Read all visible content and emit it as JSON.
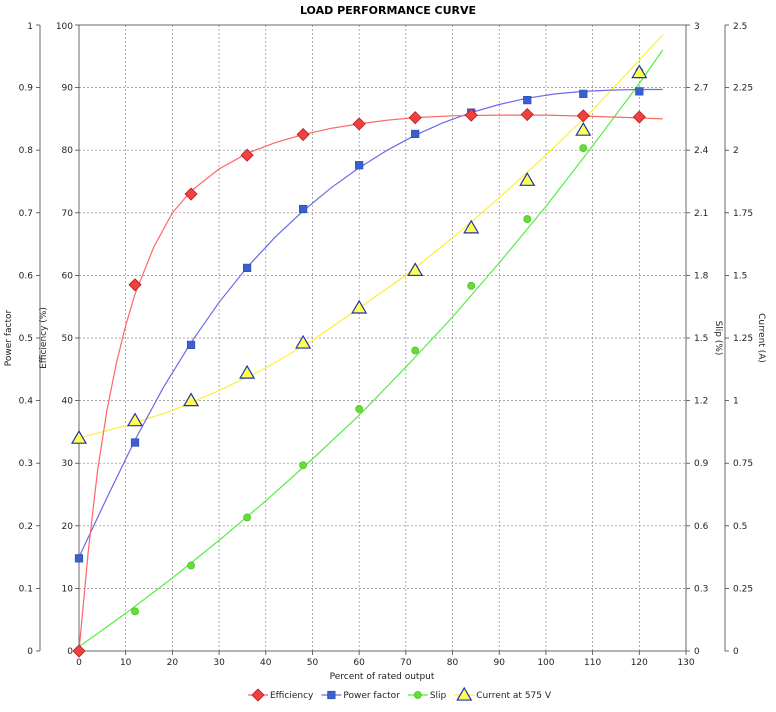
{
  "chart_data": {
    "type": "line",
    "title": "LOAD PERFORMANCE CURVE",
    "xlabel": "Percent of rated output",
    "xlim": [
      0,
      130
    ],
    "xticks": [
      0,
      10,
      20,
      30,
      40,
      50,
      60,
      70,
      80,
      90,
      100,
      110,
      120,
      130
    ],
    "grid": true,
    "legend_position": "bottom",
    "axes": [
      {
        "id": "pf",
        "label": "Power factor",
        "side": "left",
        "lim": [
          0,
          1
        ],
        "ticks": [
          "0",
          "0.1",
          "0.2",
          "0.3",
          "0.4",
          "0.5",
          "0.6",
          "0.7",
          "0.8",
          "0.9",
          "1"
        ]
      },
      {
        "id": "eff",
        "label": "Efficiency (%)",
        "side": "left",
        "lim": [
          0,
          100
        ],
        "ticks": [
          "0",
          "10",
          "20",
          "30",
          "40",
          "50",
          "60",
          "70",
          "80",
          "90",
          "100"
        ]
      },
      {
        "id": "slip",
        "label": "Slip (%)",
        "side": "right",
        "lim": [
          0,
          3
        ],
        "ticks": [
          "0",
          "0.3",
          "0.6",
          "0.9",
          "1.2",
          "1.5",
          "1.8",
          "2.1",
          "2.4",
          "2.7",
          "3"
        ]
      },
      {
        "id": "cur",
        "label": "Current (A)",
        "side": "right",
        "lim": [
          0,
          2.5
        ],
        "ticks": [
          "0",
          "0.25",
          "0.5",
          "0.75",
          "1",
          "1.25",
          "1.5",
          "1.75",
          "2",
          "2.25",
          "2.5"
        ]
      }
    ],
    "series": [
      {
        "name": "Efficiency",
        "axis": "eff",
        "color": "#f04040",
        "stroke": "#ff6666",
        "marker": "diamond",
        "points": [
          [
            0,
            0
          ],
          [
            12,
            58.5
          ],
          [
            24,
            73
          ],
          [
            36,
            79.2
          ],
          [
            48,
            82.5
          ],
          [
            60,
            84.2
          ],
          [
            72,
            85.2
          ],
          [
            84,
            85.6
          ],
          [
            96,
            85.7
          ],
          [
            108,
            85.5
          ],
          [
            120,
            85.3
          ]
        ],
        "curve": [
          [
            0,
            0
          ],
          [
            2,
            16
          ],
          [
            4,
            29
          ],
          [
            6,
            38.5
          ],
          [
            8,
            46
          ],
          [
            10,
            52
          ],
          [
            12,
            57
          ],
          [
            16,
            64.5
          ],
          [
            20,
            70
          ],
          [
            24,
            73.5
          ],
          [
            30,
            77
          ],
          [
            36,
            79.5
          ],
          [
            42,
            81.2
          ],
          [
            48,
            82.5
          ],
          [
            54,
            83.5
          ],
          [
            60,
            84.2
          ],
          [
            66,
            84.8
          ],
          [
            72,
            85.2
          ],
          [
            80,
            85.5
          ],
          [
            90,
            85.6
          ],
          [
            100,
            85.6
          ],
          [
            110,
            85.4
          ],
          [
            118,
            85.2
          ],
          [
            125,
            85.0
          ]
        ]
      },
      {
        "name": "Power factor",
        "axis": "pf",
        "color": "#3b5fcf",
        "stroke": "#6a6ae8",
        "marker": "square",
        "points": [
          [
            0,
            0.148
          ],
          [
            12,
            0.333
          ],
          [
            24,
            0.489
          ],
          [
            36,
            0.612
          ],
          [
            48,
            0.706
          ],
          [
            60,
            0.776
          ],
          [
            72,
            0.826
          ],
          [
            84,
            0.86
          ],
          [
            96,
            0.88
          ],
          [
            108,
            0.89
          ],
          [
            120,
            0.894
          ]
        ],
        "curve": [
          [
            0,
            0.15
          ],
          [
            6,
            0.245
          ],
          [
            12,
            0.337
          ],
          [
            18,
            0.42
          ],
          [
            24,
            0.493
          ],
          [
            30,
            0.557
          ],
          [
            36,
            0.613
          ],
          [
            42,
            0.661
          ],
          [
            48,
            0.703
          ],
          [
            54,
            0.74
          ],
          [
            60,
            0.772
          ],
          [
            66,
            0.8
          ],
          [
            72,
            0.824
          ],
          [
            78,
            0.844
          ],
          [
            84,
            0.86
          ],
          [
            90,
            0.873
          ],
          [
            96,
            0.883
          ],
          [
            102,
            0.89
          ],
          [
            108,
            0.894
          ],
          [
            114,
            0.896
          ],
          [
            120,
            0.897
          ],
          [
            125,
            0.897
          ]
        ]
      },
      {
        "name": "Slip",
        "axis": "slip",
        "color": "#66dd33",
        "stroke": "#55ee44",
        "marker": "circle",
        "points": [
          [
            0,
            0
          ],
          [
            12,
            0.19
          ],
          [
            24,
            0.41
          ],
          [
            36,
            0.64
          ],
          [
            48,
            0.89
          ],
          [
            60,
            1.16
          ],
          [
            72,
            1.44
          ],
          [
            84,
            1.75
          ],
          [
            96,
            2.07
          ],
          [
            108,
            2.41
          ],
          [
            120,
            2.78
          ]
        ],
        "curve": [
          [
            0,
            0.02
          ],
          [
            10,
            0.18
          ],
          [
            20,
            0.35
          ],
          [
            30,
            0.53
          ],
          [
            40,
            0.72
          ],
          [
            50,
            0.92
          ],
          [
            60,
            1.13
          ],
          [
            70,
            1.36
          ],
          [
            80,
            1.6
          ],
          [
            90,
            1.86
          ],
          [
            100,
            2.13
          ],
          [
            110,
            2.42
          ],
          [
            120,
            2.72
          ],
          [
            125,
            2.88
          ]
        ]
      },
      {
        "name": "Current at 575 V",
        "axis": "cur",
        "color": "#ffff55",
        "stroke": "#ffee33",
        "marker": "triangle",
        "points": [
          [
            0,
            0.85
          ],
          [
            12,
            0.92
          ],
          [
            24,
            1.0
          ],
          [
            36,
            1.11
          ],
          [
            48,
            1.23
          ],
          [
            60,
            1.37
          ],
          [
            72,
            1.52
          ],
          [
            84,
            1.69
          ],
          [
            96,
            1.88
          ],
          [
            108,
            2.08
          ],
          [
            120,
            2.31
          ]
        ],
        "curve": [
          [
            0,
            0.85
          ],
          [
            10,
            0.9
          ],
          [
            20,
            0.96
          ],
          [
            30,
            1.04
          ],
          [
            40,
            1.13
          ],
          [
            50,
            1.24
          ],
          [
            60,
            1.37
          ],
          [
            70,
            1.5
          ],
          [
            80,
            1.65
          ],
          [
            90,
            1.81
          ],
          [
            100,
            1.98
          ],
          [
            110,
            2.16
          ],
          [
            120,
            2.36
          ],
          [
            125,
            2.46
          ]
        ]
      }
    ]
  }
}
